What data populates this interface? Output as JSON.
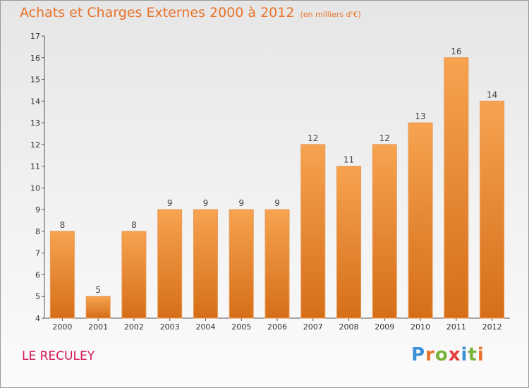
{
  "title": {
    "main": "Achats et Charges Externes 2000 à 2012",
    "unit": "(en milliers d'€)"
  },
  "commune": "LE RECULEY",
  "logo": "Proxiti",
  "colors": {
    "title": "#e8722a",
    "commune": "#d2145a",
    "bar_top": "#f6a350",
    "bar_bottom": "#d66e18"
  },
  "chart_data": {
    "type": "bar",
    "categories": [
      "2000",
      "2001",
      "2002",
      "2003",
      "2004",
      "2005",
      "2006",
      "2007",
      "2008",
      "2009",
      "2010",
      "2011",
      "2012"
    ],
    "values": [
      8,
      5,
      8,
      9,
      9,
      9,
      9,
      12,
      11,
      12,
      13,
      16,
      14
    ],
    "data_labels": [
      "8",
      "5",
      "8",
      "9",
      "9",
      "9",
      "9",
      "12",
      "11",
      "12",
      "13",
      "16",
      "14"
    ],
    "yticks": [
      "4",
      "5",
      "6",
      "7",
      "8",
      "9",
      "10",
      "11",
      "12",
      "13",
      "14",
      "15",
      "16",
      "17"
    ],
    "title": "Achats et Charges Externes 2000 à 2012",
    "xlabel": "",
    "ylabel": "",
    "ylim": [
      4,
      17
    ],
    "grid": false
  }
}
